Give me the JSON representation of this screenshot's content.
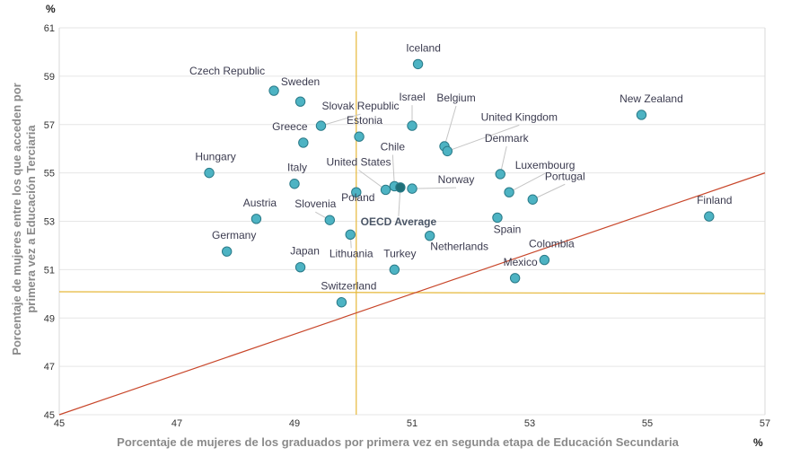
{
  "chart_data": {
    "type": "scatter",
    "xlabel": "Porcentaje de mujeres de los graduados por primera vez en segunda etapa de Educación Secundaria",
    "ylabel_lines": [
      "Porcentaje de mujeres entre los que acceden por",
      "primera vez a Educación Terciaria"
    ],
    "x_unit": "%",
    "y_unit": "%",
    "xlim": [
      45,
      57
    ],
    "ylim": [
      45,
      61
    ],
    "x_ticks": [
      "45",
      "47",
      "49",
      "51",
      "53",
      "55",
      "57"
    ],
    "y_ticks": [
      "45",
      "47",
      "49",
      "51",
      "53",
      "55",
      "57",
      "59",
      "61"
    ],
    "grid": "horizontal",
    "reference_lines": {
      "x": 50.05,
      "y": 50.05,
      "diagonal": true
    },
    "colors": {
      "point_fill": "#4db3c3",
      "point_stroke": "#2a7a88",
      "highlight_fill": "#1f6f78",
      "diagonal": "#c8462a",
      "reference": "#e6b83a",
      "grid": "#e6e6e6"
    },
    "points": [
      {
        "name": "Iceland",
        "x": 51.1,
        "y": 59.5
      },
      {
        "name": "Czech Republic",
        "x": 48.65,
        "y": 58.4
      },
      {
        "name": "Sweden",
        "x": 49.1,
        "y": 57.95
      },
      {
        "name": "Slovak Republic",
        "x": 49.45,
        "y": 56.95
      },
      {
        "name": "Israel",
        "x": 51.0,
        "y": 56.95
      },
      {
        "name": "New Zealand",
        "x": 54.9,
        "y": 57.4
      },
      {
        "name": "Belgium",
        "x": 51.55,
        "y": 56.1
      },
      {
        "name": "United Kingdom",
        "x": 51.6,
        "y": 55.9
      },
      {
        "name": "Estonia",
        "x": 50.1,
        "y": 56.5
      },
      {
        "name": "Greece",
        "x": 49.15,
        "y": 56.25
      },
      {
        "name": "Denmark",
        "x": 52.5,
        "y": 54.95
      },
      {
        "name": "Hungary",
        "x": 47.55,
        "y": 55.0
      },
      {
        "name": "Italy",
        "x": 49.0,
        "y": 54.55
      },
      {
        "name": "Chile",
        "x": 50.7,
        "y": 54.45
      },
      {
        "name": "United States",
        "x": 50.55,
        "y": 54.3
      },
      {
        "name": "Norway",
        "x": 51.0,
        "y": 54.35
      },
      {
        "name": "Poland",
        "x": 50.05,
        "y": 54.2
      },
      {
        "name": "Luxembourg",
        "x": 52.65,
        "y": 54.2
      },
      {
        "name": "Portugal",
        "x": 53.05,
        "y": 53.9
      },
      {
        "name": "Finland",
        "x": 56.05,
        "y": 53.2
      },
      {
        "name": "Austria",
        "x": 48.35,
        "y": 53.1
      },
      {
        "name": "Slovenia",
        "x": 49.6,
        "y": 53.05
      },
      {
        "name": "Spain",
        "x": 52.45,
        "y": 53.15
      },
      {
        "name": "Lithuania",
        "x": 49.95,
        "y": 52.45
      },
      {
        "name": "Netherlands",
        "x": 51.3,
        "y": 52.4
      },
      {
        "name": "Germany",
        "x": 47.85,
        "y": 51.75
      },
      {
        "name": "Colombia",
        "x": 53.25,
        "y": 51.4
      },
      {
        "name": "Japan",
        "x": 49.1,
        "y": 51.1
      },
      {
        "name": "Turkey",
        "x": 50.7,
        "y": 51.0
      },
      {
        "name": "Mexico",
        "x": 52.75,
        "y": 50.65
      },
      {
        "name": "Switzerland",
        "x": 49.8,
        "y": 49.65
      },
      {
        "name": "OECD Average",
        "x": 50.8,
        "y": 54.4,
        "highlight": true
      }
    ]
  }
}
